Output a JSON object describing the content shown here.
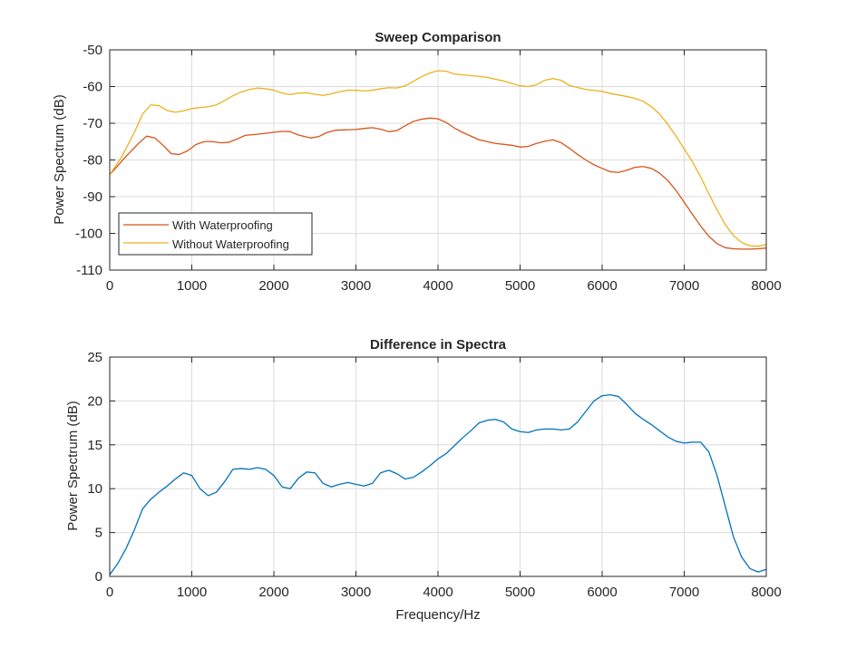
{
  "chart_data": [
    {
      "type": "line",
      "title": "Sweep Comparison",
      "xlabel": "",
      "ylabel": "Power Spectrum (dB)",
      "xlim": [
        0,
        8000
      ],
      "ylim": [
        -110,
        -50
      ],
      "xticks": [
        0,
        1000,
        2000,
        3000,
        4000,
        5000,
        6000,
        7000,
        8000
      ],
      "yticks": [
        -110,
        -100,
        -90,
        -80,
        -70,
        -60,
        -50
      ],
      "grid": true,
      "legend": "lower-left",
      "series": [
        {
          "name": "With Waterproofing",
          "color": "#D95319",
          "x": [
            0,
            200,
            350,
            450,
            550,
            650,
            750,
            850,
            950,
            1050,
            1150,
            1250,
            1350,
            1450,
            1550,
            1650,
            1800,
            1950,
            2100,
            2200,
            2300,
            2450,
            2550,
            2650,
            2750,
            2850,
            3000,
            3100,
            3200,
            3300,
            3400,
            3500,
            3600,
            3700,
            3800,
            3900,
            4000,
            4100,
            4200,
            4300,
            4500,
            4700,
            4900,
            5000,
            5100,
            5200,
            5300,
            5400,
            5500,
            5600,
            5700,
            5800,
            5900,
            6000,
            6100,
            6200,
            6300,
            6400,
            6500,
            6600,
            6700,
            6800,
            6900,
            7000,
            7100,
            7200,
            7300,
            7400,
            7500,
            7600,
            7700,
            7800,
            7900,
            8000
          ],
          "y": [
            -84,
            -79,
            -75.5,
            -73.5,
            -74,
            -76,
            -78.3,
            -78.5,
            -77.5,
            -75.8,
            -75,
            -75,
            -75.3,
            -75.2,
            -74.3,
            -73.3,
            -73,
            -72.6,
            -72.2,
            -72.3,
            -73.2,
            -74,
            -73.6,
            -72.5,
            -71.9,
            -71.8,
            -71.7,
            -71.4,
            -71.2,
            -71.6,
            -72.3,
            -72,
            -70.7,
            -69.5,
            -68.9,
            -68.6,
            -68.8,
            -69.8,
            -71.3,
            -72.5,
            -74.5,
            -75.5,
            -76,
            -76.5,
            -76.3,
            -75.5,
            -74.9,
            -74.5,
            -75.3,
            -76.8,
            -78.5,
            -80,
            -81.3,
            -82.3,
            -83.2,
            -83.4,
            -82.8,
            -82,
            -81.8,
            -82.3,
            -83.6,
            -85.6,
            -88.3,
            -91.5,
            -94.8,
            -98,
            -100.8,
            -102.8,
            -103.9,
            -104.2,
            -104.3,
            -104.3,
            -104.2,
            -104
          ]
        },
        {
          "name": "Without Waterproofing",
          "color": "#EDB120",
          "x": [
            0,
            150,
            300,
            400,
            500,
            600,
            700,
            800,
            900,
            1000,
            1100,
            1200,
            1300,
            1400,
            1500,
            1600,
            1700,
            1800,
            1900,
            2000,
            2100,
            2200,
            2300,
            2400,
            2500,
            2600,
            2700,
            2800,
            2900,
            3000,
            3100,
            3200,
            3300,
            3400,
            3500,
            3600,
            3700,
            3800,
            3900,
            4000,
            4100,
            4200,
            4400,
            4600,
            4800,
            5000,
            5100,
            5200,
            5300,
            5400,
            5500,
            5600,
            5800,
            6000,
            6100,
            6200,
            6300,
            6400,
            6500,
            6600,
            6700,
            6800,
            6900,
            7000,
            7100,
            7200,
            7300,
            7400,
            7500,
            7600,
            7700,
            7800,
            7900,
            8000
          ],
          "y": [
            -84,
            -79,
            -72.5,
            -67.5,
            -65,
            -65.2,
            -66.5,
            -67,
            -66.6,
            -66,
            -65.7,
            -65.5,
            -65,
            -63.8,
            -62.5,
            -61.5,
            -60.8,
            -60.4,
            -60.6,
            -61,
            -61.8,
            -62.2,
            -61.8,
            -61.7,
            -62.1,
            -62.4,
            -62,
            -61.4,
            -61,
            -61,
            -61.2,
            -61,
            -60.6,
            -60.3,
            -60.4,
            -59.8,
            -58.6,
            -57.3,
            -56.3,
            -55.7,
            -55.8,
            -56.6,
            -57,
            -57.5,
            -58.5,
            -59.8,
            -60,
            -59.5,
            -58.3,
            -57.8,
            -58.3,
            -59.7,
            -60.8,
            -61.3,
            -61.9,
            -62.3,
            -62.7,
            -63.2,
            -64,
            -65.5,
            -67.5,
            -70.3,
            -73.5,
            -77,
            -80.5,
            -84.6,
            -89.2,
            -93.6,
            -97.6,
            -100.6,
            -102.5,
            -103.4,
            -103.5,
            -103
          ]
        }
      ]
    },
    {
      "type": "line",
      "title": "Difference in Spectra",
      "xlabel": "Frequency/Hz",
      "ylabel": "Power Spectrum (dB)",
      "xlim": [
        0,
        8000
      ],
      "ylim": [
        0,
        25
      ],
      "xticks": [
        0,
        1000,
        2000,
        3000,
        4000,
        5000,
        6000,
        7000,
        8000
      ],
      "yticks": [
        0,
        5,
        10,
        15,
        20,
        25
      ],
      "grid": true,
      "series": [
        {
          "color": "#0072BD",
          "x": [
            0,
            100,
            200,
            300,
            400,
            500,
            600,
            700,
            800,
            900,
            1000,
            1100,
            1200,
            1300,
            1400,
            1500,
            1600,
            1700,
            1800,
            1900,
            2000,
            2100,
            2200,
            2300,
            2400,
            2500,
            2600,
            2700,
            2800,
            2900,
            3000,
            3100,
            3200,
            3300,
            3400,
            3500,
            3600,
            3700,
            3800,
            3900,
            4000,
            4100,
            4200,
            4300,
            4400,
            4500,
            4600,
            4700,
            4800,
            4900,
            5000,
            5100,
            5200,
            5300,
            5400,
            5500,
            5600,
            5700,
            5800,
            5900,
            6000,
            6100,
            6200,
            6300,
            6400,
            6500,
            6600,
            6700,
            6800,
            6900,
            7000,
            7100,
            7200,
            7300,
            7400,
            7500,
            7600,
            7700,
            7800,
            7900,
            8000
          ],
          "y": [
            0.2,
            1.5,
            3.2,
            5.3,
            7.7,
            8.8,
            9.6,
            10.3,
            11.1,
            11.8,
            11.5,
            10,
            9.2,
            9.6,
            10.8,
            12.2,
            12.3,
            12.2,
            12.4,
            12.2,
            11.5,
            10.2,
            10,
            11.2,
            11.9,
            11.8,
            10.6,
            10.2,
            10.5,
            10.7,
            10.5,
            10.3,
            10.6,
            11.8,
            12.1,
            11.7,
            11.1,
            11.3,
            11.9,
            12.6,
            13.4,
            14,
            14.9,
            15.8,
            16.6,
            17.5,
            17.8,
            17.9,
            17.6,
            16.8,
            16.5,
            16.4,
            16.7,
            16.8,
            16.8,
            16.7,
            16.8,
            17.6,
            18.8,
            20,
            20.6,
            20.7,
            20.5,
            19.6,
            18.6,
            17.9,
            17.3,
            16.6,
            15.9,
            15.4,
            15.2,
            15.3,
            15.3,
            14.2,
            11.5,
            8,
            4.5,
            2.2,
            0.9,
            0.5,
            0.8
          ]
        }
      ]
    }
  ]
}
